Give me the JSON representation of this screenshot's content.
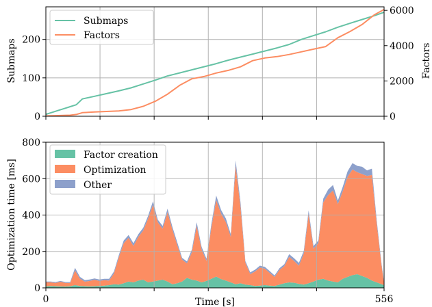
{
  "chart_data": [
    {
      "type": "line",
      "xlim": [
        0,
        556
      ],
      "ylim": [
        0,
        285
      ],
      "y2lim": [
        0,
        6200
      ],
      "xlabel": "",
      "ylabel": "Submaps",
      "y2label": "Factors",
      "yticks": [
        "0",
        "100",
        "200"
      ],
      "y2ticks": [
        "0",
        "2000",
        "4000",
        "6000"
      ],
      "grid": true,
      "legend_position": "upper-left",
      "series": [
        {
          "name": "Submaps",
          "axis": "left",
          "color": "#66c2a5",
          "x": [
            0,
            10,
            20,
            30,
            40,
            50,
            60,
            80,
            100,
            120,
            140,
            160,
            180,
            200,
            220,
            240,
            260,
            280,
            300,
            320,
            340,
            360,
            380,
            400,
            420,
            440,
            460,
            480,
            500,
            520,
            540,
            556
          ],
          "y": [
            5,
            10,
            15,
            20,
            25,
            30,
            45,
            52,
            59,
            66,
            74,
            84,
            94,
            105,
            113,
            121,
            129,
            137,
            146,
            154,
            162,
            170,
            178,
            187,
            200,
            210,
            220,
            232,
            242,
            252,
            262,
            271
          ]
        },
        {
          "name": "Factors",
          "axis": "right",
          "color": "#fc8d62",
          "x": [
            0,
            20,
            40,
            50,
            60,
            80,
            100,
            120,
            140,
            160,
            180,
            200,
            220,
            240,
            260,
            280,
            300,
            320,
            340,
            360,
            380,
            400,
            420,
            440,
            460,
            480,
            500,
            520,
            540,
            556
          ],
          "y": [
            20,
            40,
            60,
            100,
            200,
            240,
            270,
            300,
            380,
            560,
            850,
            1250,
            1750,
            2120,
            2250,
            2450,
            2600,
            2800,
            3150,
            3300,
            3380,
            3500,
            3650,
            3800,
            3950,
            4450,
            4800,
            5200,
            5750,
            6050
          ]
        }
      ]
    },
    {
      "type": "area",
      "stacked": true,
      "xlim": [
        0,
        556
      ],
      "ylim": [
        0,
        800
      ],
      "xlabel": "Time [s]",
      "ylabel": "Optimization time [ms]",
      "xticks": [
        "0",
        "556"
      ],
      "yticks": [
        "0",
        "200",
        "400",
        "600",
        "800"
      ],
      "grid": true,
      "legend_position": "upper-left",
      "x": [
        0,
        8,
        16,
        24,
        32,
        40,
        48,
        56,
        64,
        72,
        80,
        88,
        96,
        104,
        112,
        120,
        128,
        136,
        144,
        152,
        160,
        168,
        176,
        184,
        192,
        200,
        208,
        216,
        224,
        232,
        240,
        248,
        256,
        264,
        272,
        280,
        288,
        296,
        304,
        312,
        320,
        328,
        336,
        344,
        352,
        360,
        368,
        376,
        384,
        392,
        400,
        408,
        416,
        424,
        432,
        440,
        448,
        456,
        464,
        472,
        480,
        488,
        496,
        504,
        512,
        520,
        528,
        536,
        544,
        552,
        556
      ],
      "series": [
        {
          "name": "Factor creation",
          "color": "#66c2a5",
          "values": [
            8,
            10,
            9,
            8,
            7,
            9,
            15,
            10,
            9,
            8,
            9,
            10,
            12,
            15,
            20,
            18,
            25,
            35,
            30,
            40,
            45,
            30,
            35,
            40,
            45,
            35,
            20,
            25,
            35,
            55,
            45,
            40,
            30,
            38,
            50,
            62,
            48,
            40,
            30,
            20,
            25,
            18,
            15,
            10,
            12,
            15,
            12,
            10,
            18,
            25,
            30,
            28,
            22,
            18,
            25,
            35,
            45,
            50,
            40,
            35,
            30,
            50,
            60,
            70,
            75,
            65,
            55,
            40,
            30,
            20,
            15
          ]
        },
        {
          "name": "Optimization",
          "color": "#fc8d62",
          "values": [
            22,
            20,
            18,
            25,
            20,
            18,
            80,
            40,
            25,
            30,
            35,
            28,
            30,
            25,
            60,
            150,
            220,
            240,
            200,
            240,
            270,
            350,
            420,
            320,
            280,
            380,
            300,
            210,
            120,
            80,
            150,
            300,
            180,
            110,
            280,
            420,
            360,
            320,
            250,
            650,
            420,
            120,
            60,
            80,
            100,
            90,
            70,
            50,
            80,
            95,
            140,
            120,
            100,
            170,
            380,
            180,
            200,
            420,
            470,
            500,
            430,
            480,
            550,
            580,
            560,
            560,
            560,
            580,
            320,
            100,
            10
          ]
        },
        {
          "name": "Other",
          "color": "#8da0cb",
          "values": [
            5,
            5,
            5,
            5,
            5,
            5,
            15,
            10,
            8,
            8,
            8,
            8,
            8,
            10,
            10,
            12,
            15,
            15,
            15,
            15,
            15,
            15,
            20,
            15,
            15,
            20,
            15,
            15,
            10,
            10,
            15,
            20,
            15,
            12,
            20,
            25,
            20,
            20,
            15,
            30,
            25,
            10,
            10,
            10,
            10,
            10,
            10,
            8,
            10,
            10,
            15,
            15,
            15,
            15,
            20,
            15,
            15,
            20,
            30,
            30,
            20,
            25,
            30,
            35,
            35,
            40,
            30,
            35,
            20,
            10,
            5
          ]
        }
      ]
    }
  ]
}
